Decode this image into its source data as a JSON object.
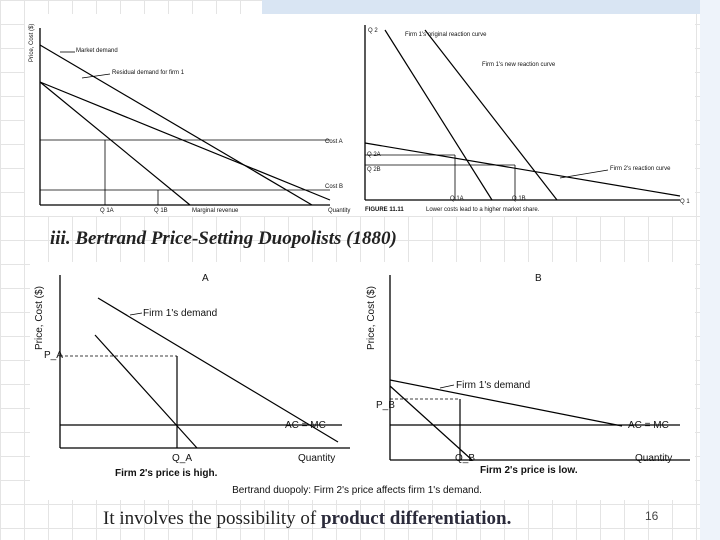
{
  "top_figure": {
    "left": {
      "y_axis_label": "Price, Cost ($)",
      "market_demand": "Market demand",
      "residual_demand": "Residual demand for firm 1",
      "cost_a": "Cost A",
      "cost_b": "Cost B",
      "q1a": "Q 1A",
      "q1b": "Q 1B",
      "marginal_revenue": "Marginal revenue",
      "x_axis_label": "Quantity"
    },
    "right": {
      "y_axis_label": "Q 2",
      "original_reaction": "Firm 1's original reaction curve",
      "new_reaction": "Firm 1's new reaction curve",
      "q2a": "Q 2A",
      "q2b": "Q 2B",
      "firm2_reaction": "Firm 2's reaction curve",
      "q1a": "Q 1A",
      "q1b": "Q 1B",
      "x_axis_label": "Q 1",
      "figure_number": "FIGURE 11.11",
      "caption": "Lower costs lead to a higher market share."
    }
  },
  "heading": "iii. Bertrand Price-Setting Duopolists (1880)",
  "bottom_figure": {
    "panel_a": {
      "title": "A",
      "y_axis_label": "Price, Cost ($)",
      "demand_label": "Firm 1's demand",
      "price_label": "P_A",
      "cost_label": "AC = MC",
      "quantity_label": "Q_A",
      "x_axis_label": "Quantity",
      "caption": "Firm 2's price is high."
    },
    "panel_b": {
      "title": "B",
      "y_axis_label": "Price, Cost ($)",
      "demand_label": "Firm 1's demand",
      "price_label": "P_B",
      "cost_label": "AC = MC",
      "quantity_label": "Q_B",
      "x_axis_label": "Quantity",
      "caption": "Firm 2's price is low."
    },
    "caption": "Bertrand duopoly: Firm 2's price affects firm 1's demand."
  },
  "footer": {
    "text": "It involves the possibility of ",
    "emphasis": "product differentiation.",
    "page_number": "16"
  }
}
